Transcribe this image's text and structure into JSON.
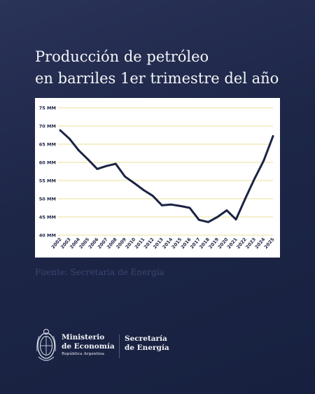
{
  "title": {
    "line1": "Producción de petróleo",
    "line2": "en barriles 1er trimestre del año"
  },
  "source": "Fuente: Secretaria de Energía",
  "footer": {
    "ministry_line1": "Ministerio",
    "ministry_line2": "de Economía",
    "ministry_line3": "República Argentina",
    "secretaria_line1": "Secretaría",
    "secretaria_line2": "de Energía"
  },
  "colors": {
    "background": "#1d2647",
    "line": "#1b2344",
    "grid": "#e9e29a",
    "label": "#1b2344"
  },
  "chart_data": {
    "type": "line",
    "title": "Producción de petróleo en barriles 1er trimestre del año",
    "xlabel": "",
    "ylabel": "",
    "ylim": [
      40,
      75
    ],
    "yticks": [
      40,
      45,
      50,
      55,
      60,
      65,
      70,
      75
    ],
    "ytick_labels": [
      "40 MM",
      "45 MM",
      "50 MM",
      "55 MM",
      "60 MM",
      "65 MM",
      "70 MM",
      "75 MM"
    ],
    "grid": true,
    "categories": [
      "2002",
      "2003",
      "2004",
      "2005",
      "2006",
      "2007",
      "2008",
      "2009",
      "2010",
      "2011",
      "2012",
      "2013",
      "2014",
      "2015",
      "2016",
      "2017",
      "2018",
      "2019",
      "2020",
      "2021",
      "2022",
      "2023",
      "2024",
      "2025"
    ],
    "series": [
      {
        "values": [
          68.8,
          66.5,
          63.3,
          60.8,
          58.2,
          59.0,
          59.6,
          56.1,
          54.3,
          52.4,
          50.8,
          48.2,
          48.4,
          48.0,
          47.5,
          44.2,
          43.6,
          45.0,
          46.8,
          44.3,
          50.0,
          55.5,
          60.5,
          67.2
        ]
      }
    ]
  }
}
